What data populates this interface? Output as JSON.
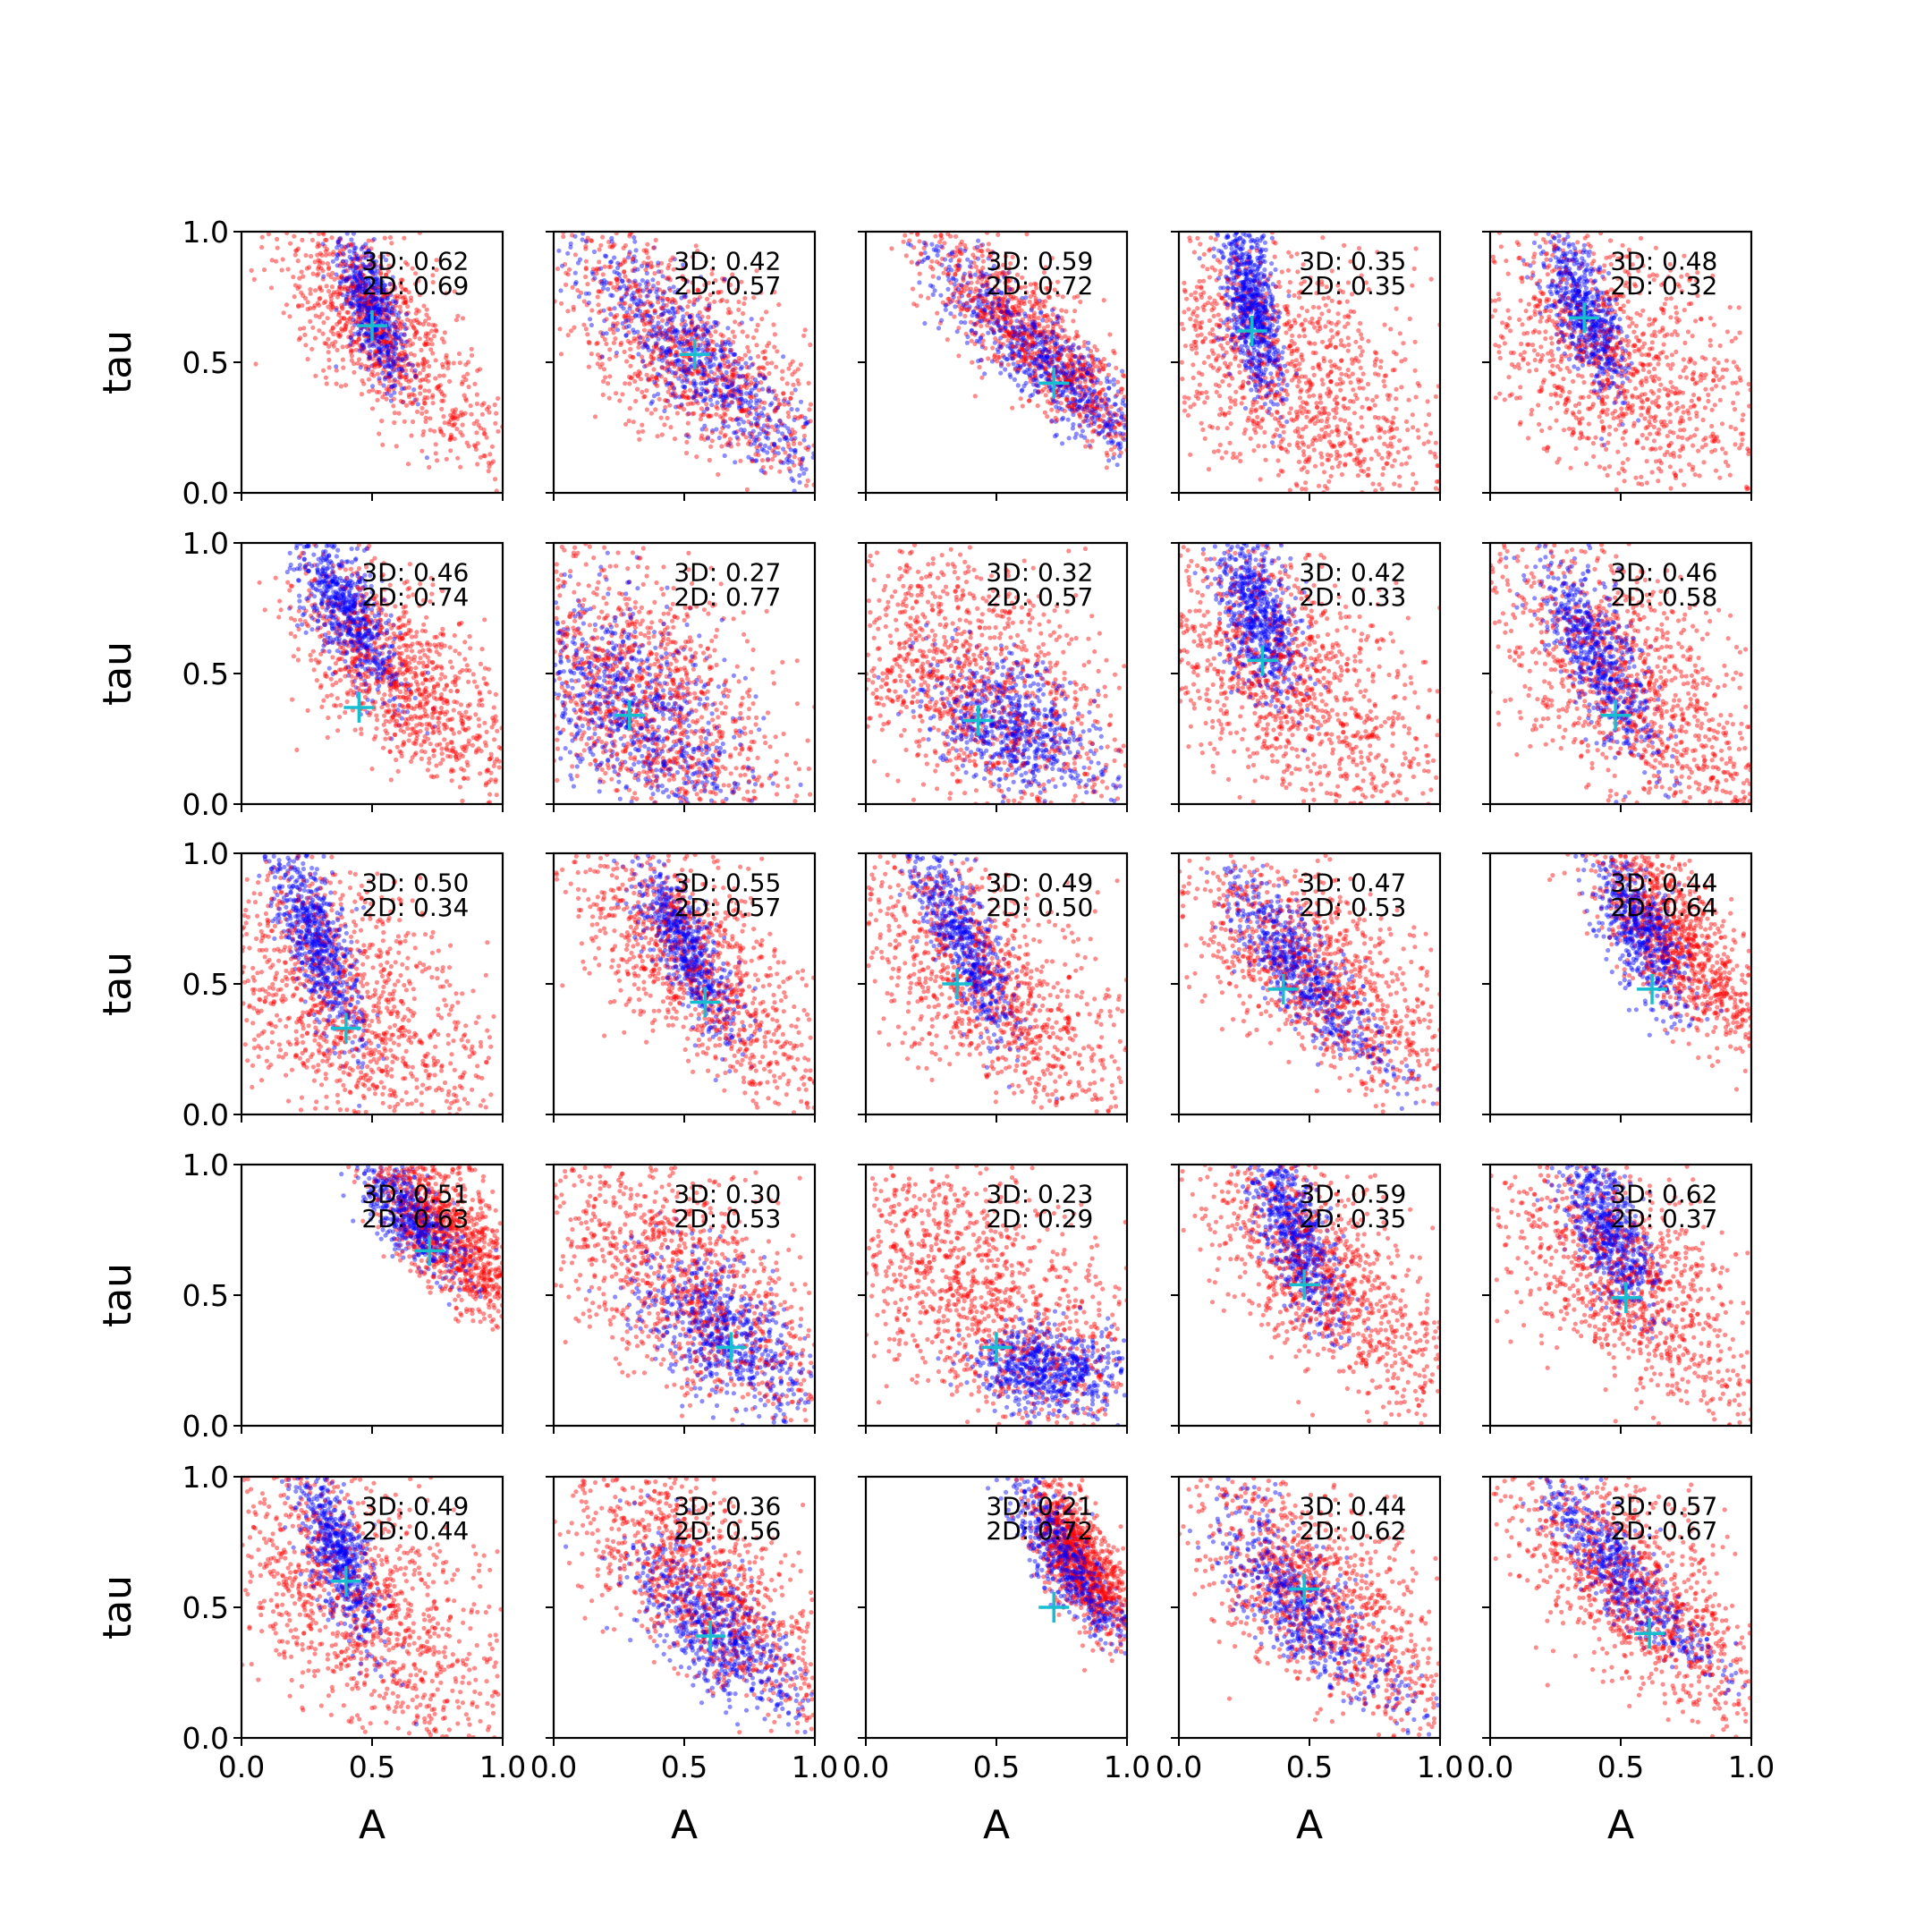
{
  "chart_data": {
    "type": "scatter",
    "layout": "5x5 grid of subplots",
    "xlabel": "A",
    "ylabel": "tau",
    "xlim": [
      0,
      1
    ],
    "ylim": [
      0,
      1
    ],
    "xticks": [
      "0.0",
      "0.5",
      "1.0"
    ],
    "yticks": [
      "0.0",
      "0.5",
      "1.0"
    ],
    "grid": false,
    "series_colors": {
      "blue": "#0000ff",
      "red": "#ff0000",
      "marker": "#17becf"
    },
    "panels": [
      {
        "label_3d": "3D: 0.62",
        "label_2d": "2D: 0.69",
        "marker": [
          0.5,
          0.64
        ],
        "blue": {
          "shape": "vert",
          "c": [
            0.5,
            0.7
          ],
          "w": [
            0.05,
            0.14
          ],
          "slope": -0.6,
          "n": 600
        },
        "red": {
          "shape": "curve",
          "c": [
            0.52,
            0.62
          ],
          "w": [
            0.14,
            0.25
          ],
          "slope": -0.9,
          "n": 900
        }
      },
      {
        "label_3d": "3D: 0.42",
        "label_2d": "2D: 0.57",
        "marker": [
          0.54,
          0.53
        ],
        "blue": {
          "shape": "curve",
          "c": [
            0.55,
            0.5
          ],
          "w": [
            0.12,
            0.24
          ],
          "slope": -1.4,
          "n": 700
        },
        "red": {
          "shape": "curve",
          "c": [
            0.5,
            0.52
          ],
          "w": [
            0.2,
            0.28
          ],
          "slope": -1.2,
          "n": 900
        }
      },
      {
        "label_3d": "3D: 0.59",
        "label_2d": "2D: 0.72",
        "marker": [
          0.72,
          0.42
        ],
        "blue": {
          "shape": "curve",
          "c": [
            0.68,
            0.5
          ],
          "w": [
            0.1,
            0.22
          ],
          "slope": -1.6,
          "n": 700
        },
        "red": {
          "shape": "curve",
          "c": [
            0.67,
            0.55
          ],
          "w": [
            0.12,
            0.26
          ],
          "slope": -1.5,
          "n": 900
        }
      },
      {
        "label_3d": "3D: 0.35",
        "label_2d": "2D: 0.35",
        "marker": [
          0.28,
          0.62
        ],
        "blue": {
          "shape": "vert",
          "c": [
            0.28,
            0.72
          ],
          "w": [
            0.05,
            0.18
          ],
          "slope": -0.3,
          "n": 700
        },
        "red": {
          "shape": "curve",
          "c": [
            0.4,
            0.45
          ],
          "w": [
            0.26,
            0.3
          ],
          "slope": -0.8,
          "n": 1000
        }
      },
      {
        "label_3d": "3D: 0.48",
        "label_2d": "2D: 0.32",
        "marker": [
          0.36,
          0.67
        ],
        "blue": {
          "shape": "vert",
          "c": [
            0.36,
            0.7
          ],
          "w": [
            0.06,
            0.16
          ],
          "slope": -0.6,
          "n": 600
        },
        "red": {
          "shape": "curve",
          "c": [
            0.45,
            0.5
          ],
          "w": [
            0.24,
            0.28
          ],
          "slope": -0.8,
          "n": 1000
        }
      },
      {
        "label_3d": "3D: 0.46",
        "label_2d": "2D: 0.74",
        "marker": [
          0.45,
          0.37
        ],
        "blue": {
          "shape": "vert",
          "c": [
            0.4,
            0.75
          ],
          "w": [
            0.07,
            0.16
          ],
          "slope": -0.8,
          "n": 650
        },
        "red": {
          "shape": "curve",
          "c": [
            0.6,
            0.48
          ],
          "w": [
            0.16,
            0.25
          ],
          "slope": -1.0,
          "n": 950
        }
      },
      {
        "label_3d": "3D: 0.27",
        "label_2d": "2D: 0.77",
        "marker": [
          0.29,
          0.34
        ],
        "blue": {
          "shape": "curve",
          "c": [
            0.3,
            0.35
          ],
          "w": [
            0.18,
            0.22
          ],
          "slope": -0.7,
          "n": 700
        },
        "red": {
          "shape": "curve",
          "c": [
            0.3,
            0.4
          ],
          "w": [
            0.25,
            0.3
          ],
          "slope": -0.7,
          "n": 1000
        }
      },
      {
        "label_3d": "3D: 0.32",
        "label_2d": "2D: 0.57",
        "marker": [
          0.43,
          0.32
        ],
        "blue": {
          "shape": "curve",
          "c": [
            0.55,
            0.3
          ],
          "w": [
            0.15,
            0.14
          ],
          "slope": -0.5,
          "n": 650
        },
        "red": {
          "shape": "curve",
          "c": [
            0.4,
            0.45
          ],
          "w": [
            0.25,
            0.28
          ],
          "slope": -0.6,
          "n": 1000
        }
      },
      {
        "label_3d": "3D: 0.42",
        "label_2d": "2D: 0.33",
        "marker": [
          0.32,
          0.55
        ],
        "blue": {
          "shape": "vert",
          "c": [
            0.3,
            0.75
          ],
          "w": [
            0.07,
            0.18
          ],
          "slope": -0.4,
          "n": 650
        },
        "red": {
          "shape": "curve",
          "c": [
            0.4,
            0.45
          ],
          "w": [
            0.24,
            0.3
          ],
          "slope": -0.8,
          "n": 1000
        }
      },
      {
        "label_3d": "3D: 0.46",
        "label_2d": "2D: 0.58",
        "marker": [
          0.48,
          0.34
        ],
        "blue": {
          "shape": "vert",
          "c": [
            0.42,
            0.55
          ],
          "w": [
            0.08,
            0.2
          ],
          "slope": -0.8,
          "n": 650
        },
        "red": {
          "shape": "curve",
          "c": [
            0.5,
            0.45
          ],
          "w": [
            0.22,
            0.28
          ],
          "slope": -0.9,
          "n": 1000
        }
      },
      {
        "label_3d": "3D: 0.50",
        "label_2d": "2D: 0.34",
        "marker": [
          0.4,
          0.33
        ],
        "blue": {
          "shape": "vert",
          "c": [
            0.28,
            0.68
          ],
          "w": [
            0.06,
            0.2
          ],
          "slope": -0.6,
          "n": 650
        },
        "red": {
          "shape": "curve",
          "c": [
            0.4,
            0.4
          ],
          "w": [
            0.24,
            0.3
          ],
          "slope": -0.8,
          "n": 1000
        }
      },
      {
        "label_3d": "3D: 0.55",
        "label_2d": "2D: 0.57",
        "marker": [
          0.58,
          0.43
        ],
        "blue": {
          "shape": "vert",
          "c": [
            0.5,
            0.65
          ],
          "w": [
            0.06,
            0.18
          ],
          "slope": -0.8,
          "n": 600
        },
        "red": {
          "shape": "curve",
          "c": [
            0.55,
            0.55
          ],
          "w": [
            0.18,
            0.28
          ],
          "slope": -1.0,
          "n": 950
        }
      },
      {
        "label_3d": "3D: 0.49",
        "label_2d": "2D: 0.50",
        "marker": [
          0.35,
          0.5
        ],
        "blue": {
          "shape": "vert",
          "c": [
            0.38,
            0.65
          ],
          "w": [
            0.06,
            0.2
          ],
          "slope": -0.8,
          "n": 600
        },
        "red": {
          "shape": "curve",
          "c": [
            0.45,
            0.5
          ],
          "w": [
            0.22,
            0.28
          ],
          "slope": -0.9,
          "n": 950
        }
      },
      {
        "label_3d": "3D: 0.47",
        "label_2d": "2D: 0.53",
        "marker": [
          0.4,
          0.48
        ],
        "blue": {
          "shape": "curve",
          "c": [
            0.45,
            0.55
          ],
          "w": [
            0.08,
            0.2
          ],
          "slope": -1.1,
          "n": 650
        },
        "red": {
          "shape": "curve",
          "c": [
            0.5,
            0.55
          ],
          "w": [
            0.2,
            0.27
          ],
          "slope": -1.1,
          "n": 950
        }
      },
      {
        "label_3d": "3D: 0.44",
        "label_2d": "2D: 0.64",
        "marker": [
          0.62,
          0.48
        ],
        "blue": {
          "shape": "vert",
          "c": [
            0.58,
            0.7
          ],
          "w": [
            0.07,
            0.15
          ],
          "slope": -0.8,
          "n": 600
        },
        "red": {
          "shape": "curve",
          "c": [
            0.72,
            0.65
          ],
          "w": [
            0.12,
            0.22
          ],
          "slope": -0.9,
          "n": 900
        }
      },
      {
        "label_3d": "3D: 0.51",
        "label_2d": "2D: 0.63",
        "marker": [
          0.72,
          0.67
        ],
        "blue": {
          "shape": "curve",
          "c": [
            0.65,
            0.8
          ],
          "w": [
            0.07,
            0.12
          ],
          "slope": -1.0,
          "n": 500
        },
        "red": {
          "shape": "curve",
          "c": [
            0.8,
            0.72
          ],
          "w": [
            0.11,
            0.2
          ],
          "slope": -1.0,
          "n": 900
        }
      },
      {
        "label_3d": "3D: 0.30",
        "label_2d": "2D: 0.53",
        "marker": [
          0.68,
          0.3
        ],
        "blue": {
          "shape": "curve",
          "c": [
            0.65,
            0.35
          ],
          "w": [
            0.14,
            0.16
          ],
          "slope": -1.0,
          "n": 650
        },
        "red": {
          "shape": "curve",
          "c": [
            0.5,
            0.55
          ],
          "w": [
            0.22,
            0.28
          ],
          "slope": -1.1,
          "n": 950
        }
      },
      {
        "label_3d": "3D: 0.23",
        "label_2d": "2D: 0.29",
        "marker": [
          0.5,
          0.3
        ],
        "blue": {
          "shape": "curve",
          "c": [
            0.7,
            0.22
          ],
          "w": [
            0.14,
            0.08
          ],
          "slope": -0.4,
          "n": 650
        },
        "red": {
          "shape": "curve",
          "c": [
            0.4,
            0.5
          ],
          "w": [
            0.26,
            0.3
          ],
          "slope": -0.9,
          "n": 1000
        }
      },
      {
        "label_3d": "3D: 0.59",
        "label_2d": "2D: 0.35",
        "marker": [
          0.48,
          0.54
        ],
        "blue": {
          "shape": "vert",
          "c": [
            0.44,
            0.75
          ],
          "w": [
            0.06,
            0.18
          ],
          "slope": -0.6,
          "n": 600
        },
        "red": {
          "shape": "curve",
          "c": [
            0.55,
            0.55
          ],
          "w": [
            0.18,
            0.28
          ],
          "slope": -1.0,
          "n": 950
        }
      },
      {
        "label_3d": "3D: 0.62",
        "label_2d": "2D: 0.37",
        "marker": [
          0.52,
          0.49
        ],
        "blue": {
          "shape": "vert",
          "c": [
            0.45,
            0.75
          ],
          "w": [
            0.07,
            0.17
          ],
          "slope": -0.6,
          "n": 600
        },
        "red": {
          "shape": "curve",
          "c": [
            0.5,
            0.55
          ],
          "w": [
            0.2,
            0.28
          ],
          "slope": -0.9,
          "n": 950
        }
      },
      {
        "label_3d": "3D: 0.49",
        "label_2d": "2D: 0.44",
        "marker": [
          0.4,
          0.6
        ],
        "blue": {
          "shape": "vert",
          "c": [
            0.37,
            0.7
          ],
          "w": [
            0.06,
            0.17
          ],
          "slope": -0.6,
          "n": 600
        },
        "red": {
          "shape": "curve",
          "c": [
            0.45,
            0.5
          ],
          "w": [
            0.24,
            0.3
          ],
          "slope": -0.8,
          "n": 1000
        }
      },
      {
        "label_3d": "3D: 0.36",
        "label_2d": "2D: 0.56",
        "marker": [
          0.6,
          0.39
        ],
        "blue": {
          "shape": "curve",
          "c": [
            0.62,
            0.4
          ],
          "w": [
            0.12,
            0.18
          ],
          "slope": -1.2,
          "n": 650
        },
        "red": {
          "shape": "curve",
          "c": [
            0.55,
            0.58
          ],
          "w": [
            0.18,
            0.26
          ],
          "slope": -1.1,
          "n": 950
        }
      },
      {
        "label_3d": "3D: 0.21",
        "label_2d": "2D: 0.72",
        "marker": [
          0.72,
          0.5
        ],
        "blue": {
          "shape": "curve",
          "c": [
            0.78,
            0.65
          ],
          "w": [
            0.06,
            0.18
          ],
          "slope": -1.0,
          "n": 600
        },
        "red": {
          "shape": "vert",
          "c": [
            0.82,
            0.68
          ],
          "w": [
            0.07,
            0.15
          ],
          "slope": -0.8,
          "n": 900
        }
      },
      {
        "label_3d": "3D: 0.44",
        "label_2d": "2D: 0.62",
        "marker": [
          0.48,
          0.57
        ],
        "blue": {
          "shape": "curve",
          "c": [
            0.47,
            0.5
          ],
          "w": [
            0.1,
            0.22
          ],
          "slope": -1.1,
          "n": 650
        },
        "red": {
          "shape": "curve",
          "c": [
            0.55,
            0.5
          ],
          "w": [
            0.2,
            0.28
          ],
          "slope": -1.1,
          "n": 950
        }
      },
      {
        "label_3d": "3D: 0.57",
        "label_2d": "2D: 0.67",
        "marker": [
          0.61,
          0.4
        ],
        "blue": {
          "shape": "curve",
          "c": [
            0.5,
            0.62
          ],
          "w": [
            0.08,
            0.2
          ],
          "slope": -1.2,
          "n": 600
        },
        "red": {
          "shape": "curve",
          "c": [
            0.55,
            0.55
          ],
          "w": [
            0.18,
            0.28
          ],
          "slope": -1.1,
          "n": 950
        }
      }
    ]
  }
}
